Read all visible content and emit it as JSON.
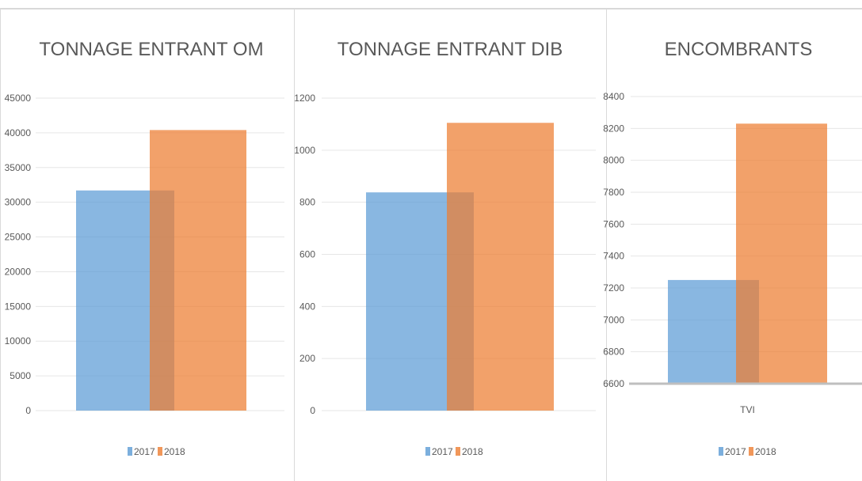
{
  "colors": {
    "s2017": "#5b9bd5",
    "s2018": "#ed7d31",
    "grid": "#e6e6e6",
    "axis": "#bfbfbf",
    "text": "#595959"
  },
  "chart_data": [
    {
      "type": "bar",
      "title": "TONNAGE ENTRANT OM",
      "categories": [
        ""
      ],
      "series": [
        {
          "name": "2017",
          "values": [
            31700
          ]
        },
        {
          "name": "2018",
          "values": [
            40400
          ]
        }
      ],
      "ylim": [
        0,
        45000
      ],
      "yticks": [
        0,
        5000,
        10000,
        15000,
        20000,
        25000,
        30000,
        35000,
        40000,
        45000
      ],
      "grid": true,
      "legend": "bottom"
    },
    {
      "type": "bar",
      "title": "TONNAGE ENTRANT DIB",
      "categories": [
        ""
      ],
      "series": [
        {
          "name": "2017",
          "values": [
            838
          ]
        },
        {
          "name": "2018",
          "values": [
            1105
          ]
        }
      ],
      "ylim": [
        0,
        1200
      ],
      "yticks": [
        0,
        200,
        400,
        600,
        800,
        1000,
        1200
      ],
      "grid": true,
      "legend": "bottom"
    },
    {
      "type": "bar",
      "title": "ENCOMBRANTS",
      "categories": [
        "TVI"
      ],
      "series": [
        {
          "name": "2017",
          "values": [
            7250
          ]
        },
        {
          "name": "2018",
          "values": [
            8230
          ]
        }
      ],
      "ylim": [
        6600,
        8400
      ],
      "yticks": [
        6600,
        6800,
        7000,
        7200,
        7400,
        7600,
        7800,
        8000,
        8200,
        8400
      ],
      "grid": true,
      "legend": "bottom"
    }
  ]
}
